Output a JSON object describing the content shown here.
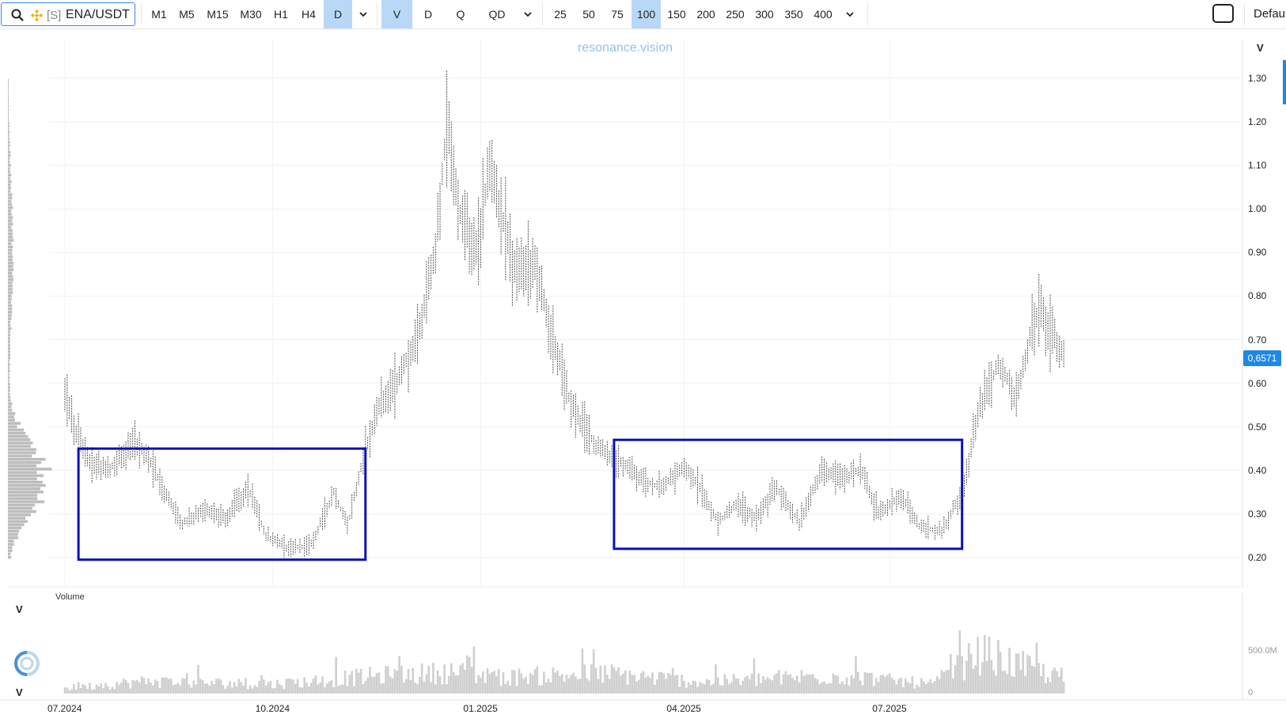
{
  "toolbar": {
    "symbol_prefix": "[S]",
    "symbol": "ENA/USDT",
    "timeframes": [
      "M1",
      "M5",
      "M15",
      "M30",
      "H1",
      "H4",
      "D"
    ],
    "active_timeframe": "D",
    "chart_modes": [
      "V",
      "D",
      "Q",
      "QD"
    ],
    "active_mode": "V",
    "sizes": [
      "25",
      "50",
      "75",
      "100",
      "150",
      "200",
      "250",
      "300",
      "350",
      "400"
    ],
    "active_size": "100",
    "default_label": "Default"
  },
  "watermark": "resonance.vision",
  "axis_letters": {
    "price_top": "V",
    "volume_top": "V",
    "volume_bottom": "V"
  },
  "volume_label": "Volume",
  "current_price": "0,6571",
  "colors": {
    "accent": "#1e88e5",
    "box": "#0a10b8",
    "candle": "#333333",
    "volume": "#cfcfcf",
    "profile": "#bdbdbd"
  },
  "chart_data": {
    "type": "bar",
    "title": "",
    "x_ticks": [
      "07.2024",
      "10.2024",
      "01.2025",
      "04.2025",
      "07.2025"
    ],
    "y_ticks": [
      "0.20",
      "0.30",
      "0.40",
      "0.50",
      "0.60",
      "0.70",
      "0.80",
      "0.90",
      "1.00",
      "1.10",
      "1.20",
      "1.30"
    ],
    "ylim": [
      0.13,
      1.4
    ],
    "volume_ticks": [
      "0",
      "500.0M"
    ],
    "volume_ylim": [
      0,
      1200
    ],
    "boxes": [
      {
        "from": "2024-07-07",
        "to": "2024-11-11",
        "low": 0.195,
        "high": 0.45
      },
      {
        "from": "2025-03-01",
        "to": "2025-08-02",
        "low": 0.22,
        "high": 0.47
      }
    ],
    "price_anchors": [
      [
        "2024-07-01",
        0.58
      ],
      [
        "2024-07-05",
        0.5
      ],
      [
        "2024-07-12",
        0.42
      ],
      [
        "2024-07-20",
        0.4
      ],
      [
        "2024-08-01",
        0.46
      ],
      [
        "2024-08-08",
        0.42
      ],
      [
        "2024-08-14",
        0.35
      ],
      [
        "2024-08-22",
        0.28
      ],
      [
        "2024-09-01",
        0.31
      ],
      [
        "2024-09-10",
        0.29
      ],
      [
        "2024-09-20",
        0.36
      ],
      [
        "2024-09-28",
        0.25
      ],
      [
        "2024-10-08",
        0.22
      ],
      [
        "2024-10-18",
        0.23
      ],
      [
        "2024-10-28",
        0.35
      ],
      [
        "2024-11-03",
        0.27
      ],
      [
        "2024-11-11",
        0.45
      ],
      [
        "2024-11-17",
        0.55
      ],
      [
        "2024-11-25",
        0.6
      ],
      [
        "2024-12-05",
        0.72
      ],
      [
        "2024-12-12",
        0.9
      ],
      [
        "2024-12-17",
        1.2
      ],
      [
        "2024-12-22",
        1.0
      ],
      [
        "2024-12-30",
        0.9
      ],
      [
        "2025-01-05",
        1.1
      ],
      [
        "2025-01-12",
        0.95
      ],
      [
        "2025-01-17",
        0.85
      ],
      [
        "2025-01-25",
        0.88
      ],
      [
        "2025-02-02",
        0.7
      ],
      [
        "2025-02-10",
        0.55
      ],
      [
        "2025-02-22",
        0.45
      ],
      [
        "2025-03-03",
        0.42
      ],
      [
        "2025-03-12",
        0.38
      ],
      [
        "2025-03-22",
        0.36
      ],
      [
        "2025-04-01",
        0.41
      ],
      [
        "2025-04-08",
        0.36
      ],
      [
        "2025-04-16",
        0.28
      ],
      [
        "2025-04-24",
        0.32
      ],
      [
        "2025-05-03",
        0.29
      ],
      [
        "2025-05-12",
        0.36
      ],
      [
        "2025-05-22",
        0.28
      ],
      [
        "2025-06-01",
        0.4
      ],
      [
        "2025-06-10",
        0.38
      ],
      [
        "2025-06-18",
        0.4
      ],
      [
        "2025-06-26",
        0.3
      ],
      [
        "2025-07-06",
        0.34
      ],
      [
        "2025-07-14",
        0.27
      ],
      [
        "2025-07-24",
        0.26
      ],
      [
        "2025-08-02",
        0.35
      ],
      [
        "2025-08-10",
        0.55
      ],
      [
        "2025-08-18",
        0.64
      ],
      [
        "2025-08-26",
        0.57
      ],
      [
        "2025-09-05",
        0.78
      ],
      [
        "2025-09-12",
        0.7
      ],
      [
        "2025-09-16",
        0.66
      ]
    ],
    "volume_anchors": [
      [
        "2024-07-01",
        80
      ],
      [
        "2024-08-05",
        180
      ],
      [
        "2024-10-01",
        140
      ],
      [
        "2024-11-15",
        260
      ],
      [
        "2024-12-20",
        320
      ],
      [
        "2025-01-10",
        240
      ],
      [
        "2025-02-25",
        300
      ],
      [
        "2025-04-10",
        170
      ],
      [
        "2025-06-05",
        270
      ],
      [
        "2025-07-20",
        140
      ],
      [
        "2025-08-10",
        600
      ],
      [
        "2025-09-16",
        220
      ]
    ]
  }
}
